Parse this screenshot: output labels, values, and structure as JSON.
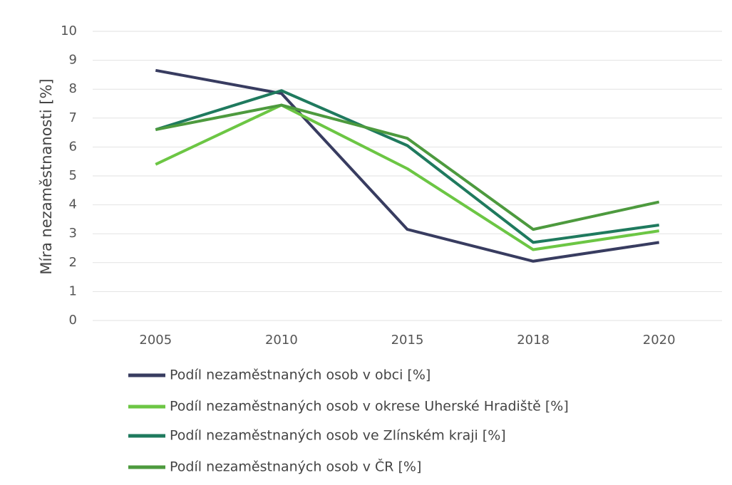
{
  "chart_data": {
    "type": "line",
    "y_label": "Míra nezaměstnanosti [%]",
    "categories": [
      "2005",
      "2010",
      "2015",
      "2018",
      "2020"
    ],
    "series": [
      {
        "name": "Podíl nezaměstnaných osob v obci [%]",
        "color": "#383c60",
        "values": [
          8.65,
          7.85,
          3.15,
          2.05,
          2.7
        ]
      },
      {
        "name": "Podíl nezaměstnaných osob v okrese Uherské Hradiště [%]",
        "color": "#6cc644",
        "values": [
          5.4,
          7.45,
          5.25,
          2.45,
          3.1
        ]
      },
      {
        "name": "Podíl nezaměstnaných osob ve Zlínském kraji [%]",
        "color": "#1f7a5e",
        "values": [
          6.6,
          7.95,
          6.05,
          2.7,
          3.3
        ]
      },
      {
        "name": "Podíl nezaměstnaných osob v ČR [%]",
        "color": "#4d9a3e",
        "values": [
          6.6,
          7.45,
          6.3,
          3.15,
          4.1
        ]
      }
    ],
    "ylim": [
      0,
      10
    ],
    "yticks": [
      0,
      1,
      2,
      3,
      4,
      5,
      6,
      7,
      8,
      9,
      10
    ],
    "grid": true
  }
}
